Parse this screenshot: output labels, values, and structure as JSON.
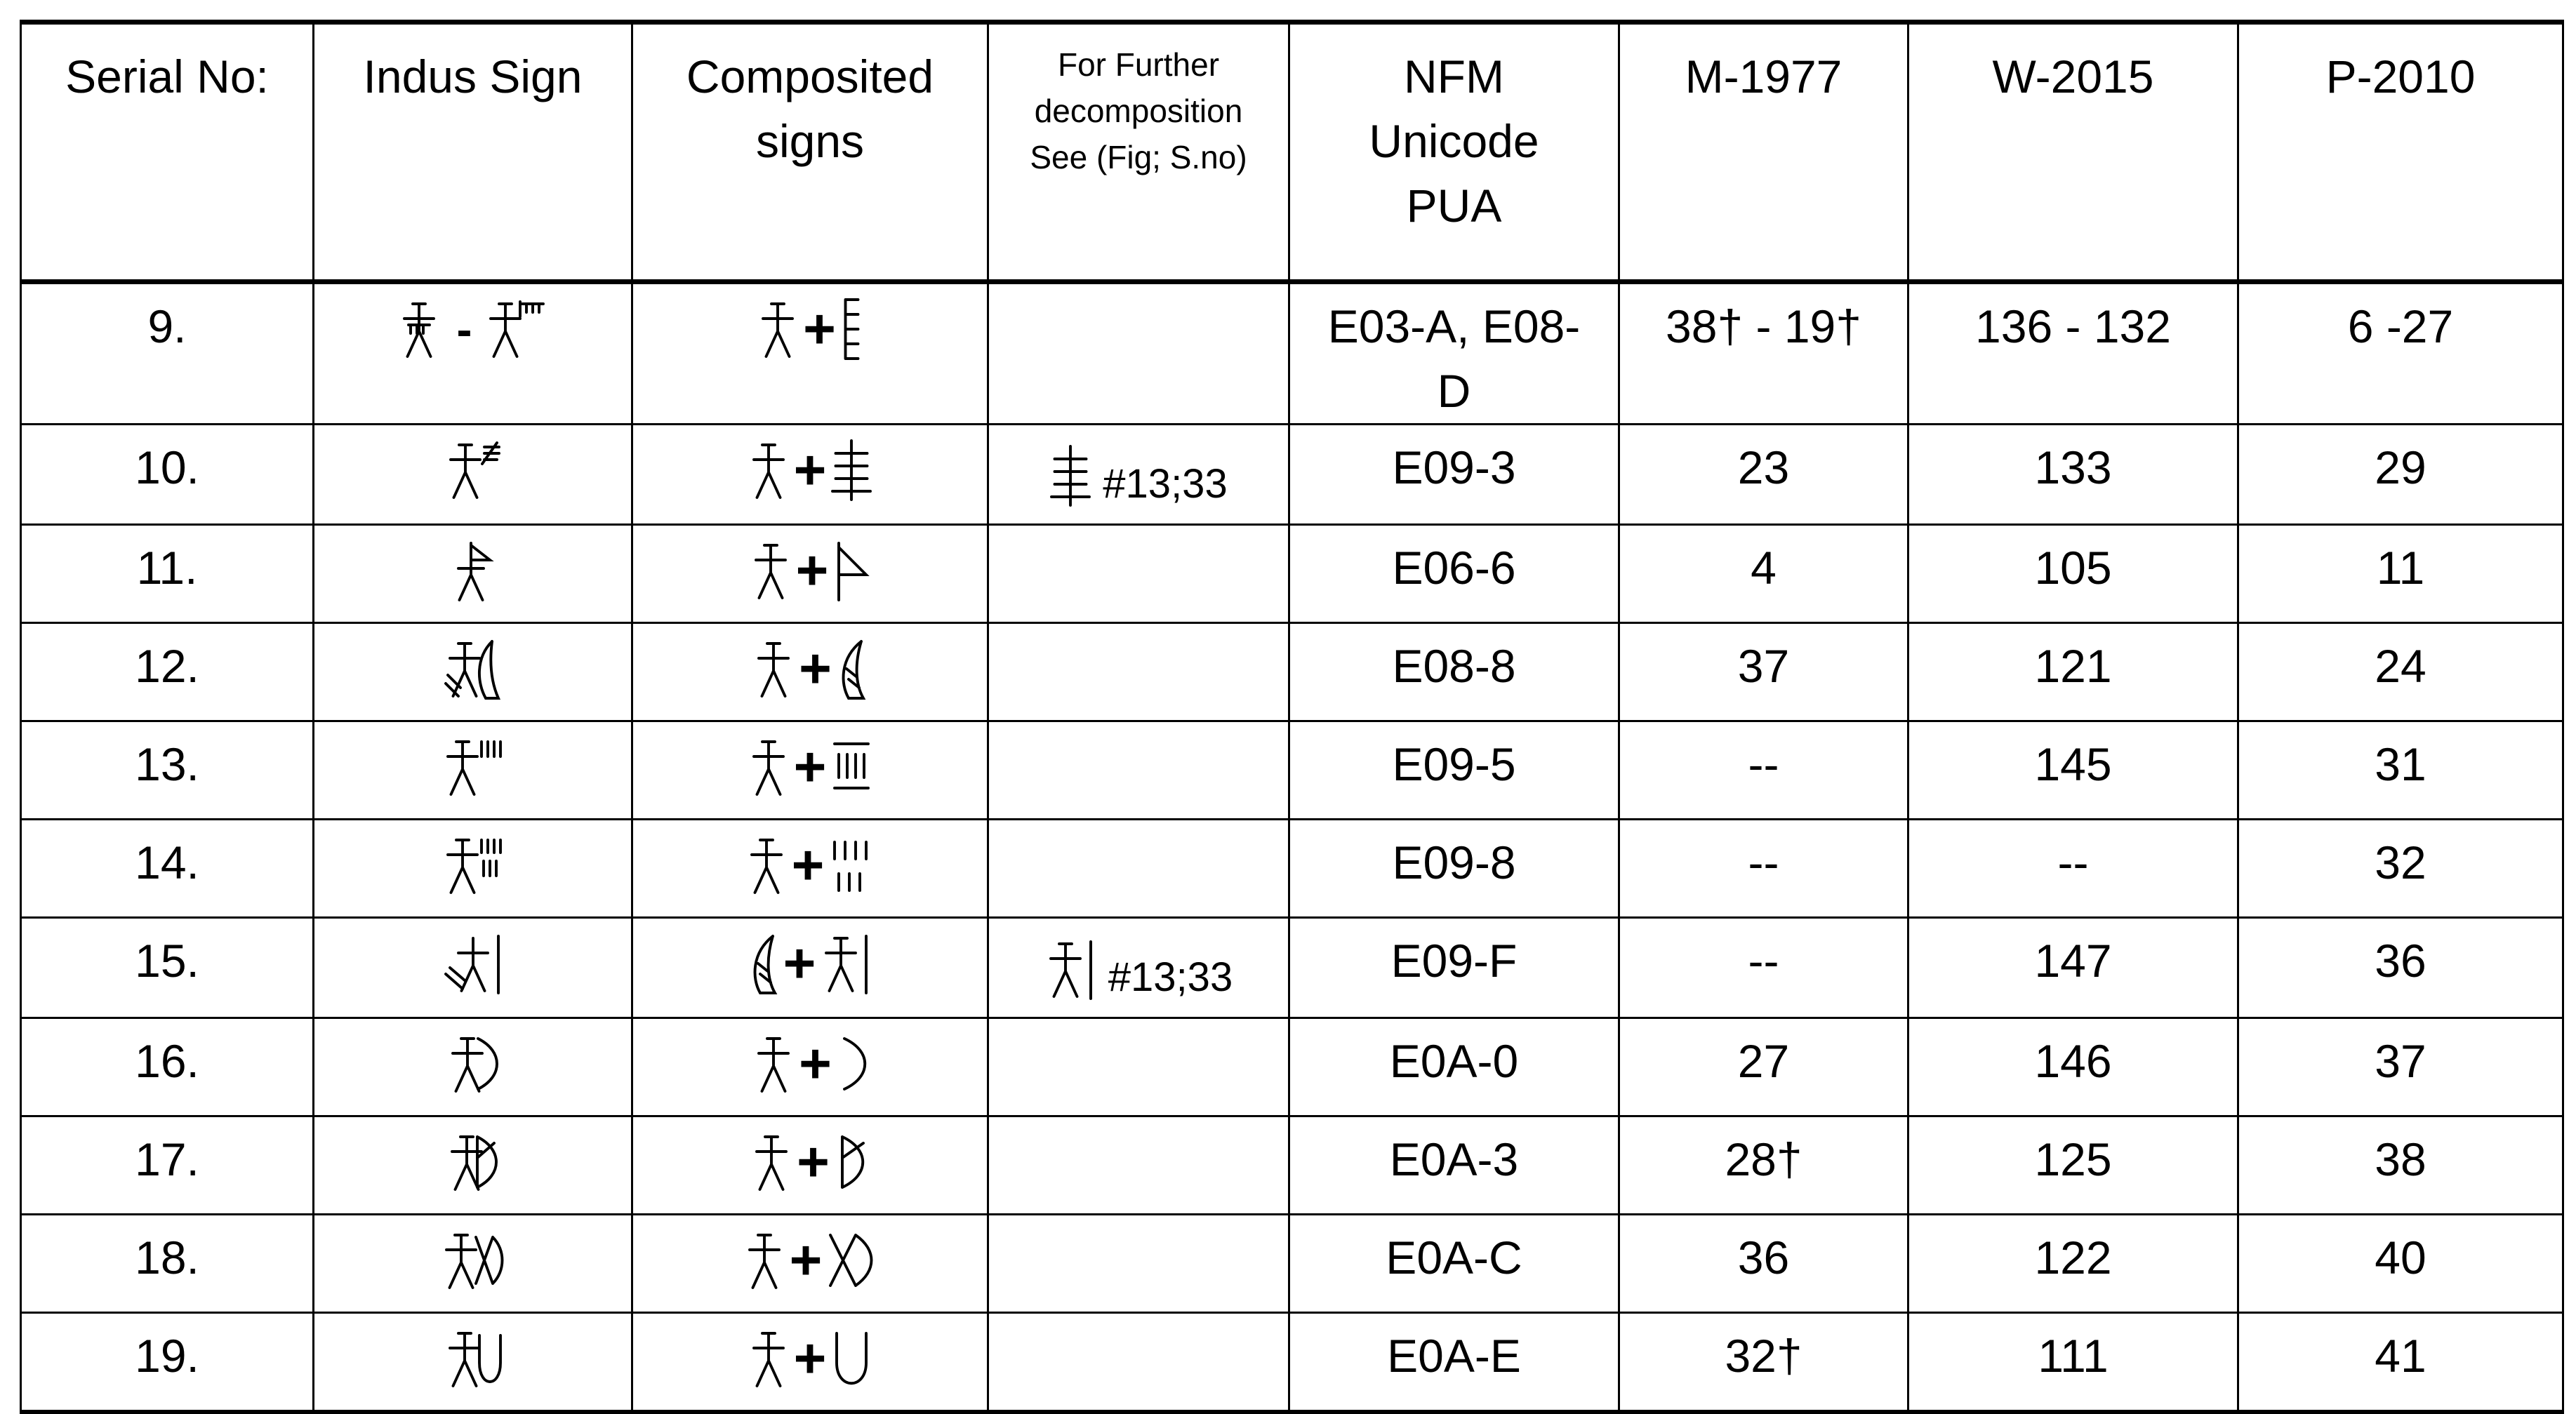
{
  "headers": {
    "serial": "Serial No:",
    "indus_sign": "Indus Sign",
    "composited": "Composited signs",
    "further": "For Further decomposition See (Fig; S.no)",
    "nfm": "NFM Unicode PUA",
    "m1977": "M-1977",
    "w2015": "W-2015",
    "p2010": "P-2010"
  },
  "plus": "+",
  "separator": "-",
  "rows": [
    {
      "serial": "9.",
      "sign": [
        "man-comb-body",
        "man-comb"
      ],
      "composite": [
        "man",
        "ladder"
      ],
      "further_icon": "",
      "further_ref": "",
      "nfm": "E03-A, E08-D",
      "m1977": "38† - 19†",
      "w2015": "136 - 132",
      "p2010": "6 -27"
    },
    {
      "serial": "10.",
      "sign": [
        "man-cross-strokes"
      ],
      "composite": [
        "man",
        "triple-cross"
      ],
      "further_icon": "triple-cross",
      "further_ref": "#13;33",
      "nfm": "E09-3",
      "m1977": "23",
      "w2015": "133",
      "p2010": "29"
    },
    {
      "serial": "11.",
      "sign": [
        "man-flag"
      ],
      "composite": [
        "man",
        "flag"
      ],
      "further_icon": "",
      "further_ref": "",
      "nfm": "E06-6",
      "m1977": "4",
      "w2015": "105",
      "p2010": "11"
    },
    {
      "serial": "12.",
      "sign": [
        "man-shaded-horn"
      ],
      "composite": [
        "man",
        "horn"
      ],
      "further_icon": "",
      "further_ref": "",
      "nfm": "E08-8",
      "m1977": "37",
      "w2015": "121",
      "p2010": "24"
    },
    {
      "serial": "13.",
      "sign": [
        "man-four-strokes"
      ],
      "composite": [
        "man",
        "dotted-strokes"
      ],
      "further_icon": "",
      "further_ref": "",
      "nfm": "E09-5",
      "m1977": "--",
      "w2015": "145",
      "p2010": "31"
    },
    {
      "serial": "14.",
      "sign": [
        "man-seven-strokes"
      ],
      "composite": [
        "man",
        "seven-strokes"
      ],
      "further_icon": "",
      "further_ref": "",
      "nfm": "E09-8",
      "m1977": "--",
      "w2015": "--",
      "p2010": "32"
    },
    {
      "serial": "15.",
      "sign": [
        "shaded-man-bar"
      ],
      "composite": [
        "horn",
        "man-bar"
      ],
      "further_icon": "man-bar",
      "further_ref": "#13;33",
      "nfm": "E09-F",
      "m1977": "--",
      "w2015": "147",
      "p2010": "36"
    },
    {
      "serial": "16.",
      "sign": [
        "man-bow"
      ],
      "composite": [
        "man",
        "bow"
      ],
      "further_icon": "",
      "further_ref": "",
      "nfm": "E0A-0",
      "m1977": "27",
      "w2015": "146",
      "p2010": "37"
    },
    {
      "serial": "17.",
      "sign": [
        "man-bow-stroke"
      ],
      "composite": [
        "man",
        "bow-stroke"
      ],
      "further_icon": "",
      "further_ref": "",
      "nfm": "E0A-3",
      "m1977": "28†",
      "w2015": "125",
      "p2010": "38"
    },
    {
      "serial": "18.",
      "sign": [
        "man-cross-arc"
      ],
      "composite": [
        "man",
        "cross-arc"
      ],
      "further_icon": "",
      "further_ref": "",
      "nfm": "E0A-C",
      "m1977": "36",
      "w2015": "122",
      "p2010": "40"
    },
    {
      "serial": "19.",
      "sign": [
        "man-u"
      ],
      "composite": [
        "man",
        "u-shape"
      ],
      "further_icon": "",
      "further_ref": "",
      "nfm": "E0A-E",
      "m1977": "32†",
      "w2015": "111",
      "p2010": "41"
    }
  ]
}
